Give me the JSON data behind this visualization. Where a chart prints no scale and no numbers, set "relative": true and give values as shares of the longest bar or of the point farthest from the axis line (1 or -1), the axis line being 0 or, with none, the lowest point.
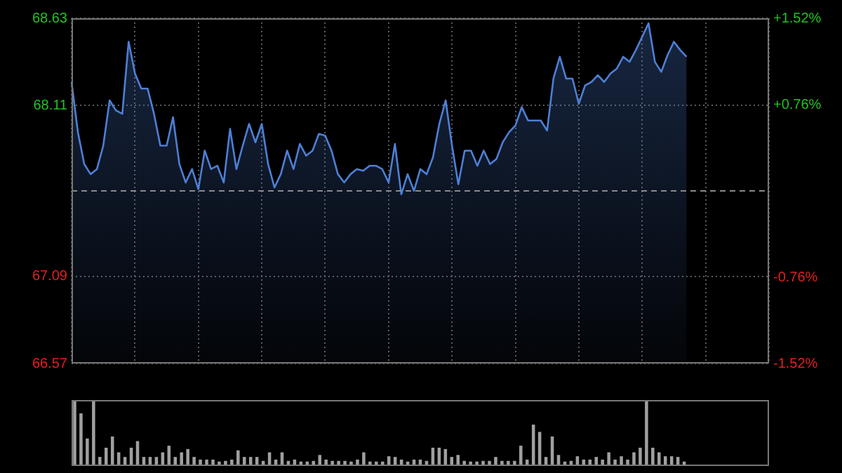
{
  "chart_data": [
    {
      "type": "area",
      "categories": [
        null,
        null,
        null,
        null,
        null,
        null,
        null,
        null,
        null,
        null,
        null,
        null,
        null,
        null,
        null,
        null,
        null,
        null,
        null,
        null,
        null,
        null,
        null,
        null,
        null,
        null,
        null,
        null,
        null,
        null,
        null,
        null,
        null,
        null,
        null,
        null,
        null,
        null,
        null,
        null,
        null,
        null,
        null,
        null,
        null,
        null,
        null,
        null,
        null,
        null,
        null,
        null,
        null,
        null,
        null,
        null,
        null,
        null,
        null,
        null,
        null,
        null,
        null,
        null,
        null,
        null,
        null,
        null,
        null,
        null,
        null,
        null,
        null,
        null,
        null,
        null,
        null,
        null,
        null,
        null,
        null,
        null,
        null,
        null,
        null,
        null,
        null,
        null,
        null,
        null,
        null,
        null,
        null,
        null,
        null,
        null,
        null,
        null,
        null,
        null,
        null,
        null,
        null,
        null,
        null,
        null,
        null,
        null,
        null,
        null,
        null
      ],
      "series": [
        {
          "color": "#4d7fd6",
          "values": [
            68.25,
            67.95,
            67.76,
            67.7,
            67.73,
            67.87,
            68.14,
            68.08,
            68.06,
            68.49,
            68.3,
            68.21,
            68.21,
            68.06,
            67.87,
            67.87,
            68.04,
            67.76,
            67.65,
            67.73,
            67.61,
            67.84,
            67.73,
            67.75,
            67.65,
            67.97,
            67.73,
            67.87,
            68.0,
            67.89,
            68.0,
            67.76,
            67.62,
            67.7,
            67.84,
            67.73,
            67.88,
            67.81,
            67.84,
            67.94,
            67.93,
            67.84,
            67.7,
            67.65,
            67.7,
            67.73,
            67.72,
            67.75,
            67.75,
            67.73,
            67.65,
            67.88,
            67.58,
            67.7,
            67.6,
            67.73,
            67.7,
            67.8,
            68.0,
            68.14,
            67.87,
            67.64,
            67.84,
            67.84,
            67.75,
            67.84,
            67.76,
            67.79,
            67.89,
            67.95,
            67.99,
            68.1,
            68.02,
            68.02,
            68.02,
            67.96,
            68.27,
            68.4,
            68.27,
            68.27,
            68.12,
            68.23,
            68.25,
            68.29,
            68.25,
            68.3,
            68.33,
            68.4,
            68.37,
            68.44,
            68.52,
            68.6,
            68.37,
            68.31,
            68.41,
            68.49,
            68.44,
            68.4,
            null,
            null,
            null,
            null,
            null,
            null,
            null,
            null,
            null,
            null,
            null,
            null,
            null
          ]
        }
      ],
      "ylim": [
        66.57,
        68.63
      ],
      "yticks": [
        66.57,
        67.09,
        68.11,
        68.63
      ],
      "y2lim": [
        -1.52,
        1.52
      ],
      "y2ticks": [
        {
          "value": -1.52,
          "label": "-1.52%"
        },
        {
          "value": -0.76,
          "label": "-0.76%"
        },
        {
          "value": 0.76,
          "label": "+0.76%"
        },
        {
          "value": 1.52,
          "label": "+1.52%"
        }
      ],
      "ref_lines": [
        {
          "axis": "y",
          "value": 67.6,
          "color": "#8a8a8a",
          "line_style": "dashed"
        }
      ],
      "grid": true,
      "tick_labels": "y"
    },
    {
      "type": "bar",
      "relative": true,
      "tick_labels": false,
      "color": "#a0a0a0",
      "categories": [
        null,
        null,
        null,
        null,
        null,
        null,
        null,
        null,
        null,
        null,
        null,
        null,
        null,
        null,
        null,
        null,
        null,
        null,
        null,
        null,
        null,
        null,
        null,
        null,
        null,
        null,
        null,
        null,
        null,
        null,
        null,
        null,
        null,
        null,
        null,
        null,
        null,
        null,
        null,
        null,
        null,
        null,
        null,
        null,
        null,
        null,
        null,
        null,
        null,
        null,
        null,
        null,
        null,
        null,
        null,
        null,
        null,
        null,
        null,
        null,
        null,
        null,
        null,
        null,
        null,
        null,
        null,
        null,
        null,
        null,
        null,
        null,
        null,
        null,
        null,
        null,
        null,
        null,
        null,
        null,
        null,
        null,
        null,
        null,
        null,
        null,
        null,
        null,
        null,
        null,
        null,
        null,
        null,
        null,
        null,
        null,
        null,
        null,
        null,
        null,
        null,
        null,
        null,
        null,
        null,
        null,
        null,
        null,
        null,
        null,
        null
      ],
      "values": [
        1.0,
        0.79,
        0.41,
        1.0,
        0.13,
        0.27,
        0.44,
        0.2,
        0.13,
        0.27,
        0.37,
        0.13,
        0.13,
        0.13,
        0.2,
        0.3,
        0.13,
        0.2,
        0.25,
        0.13,
        0.09,
        0.09,
        0.09,
        0.06,
        0.07,
        0.09,
        0.23,
        0.13,
        0.13,
        0.13,
        0.07,
        0.2,
        0.09,
        0.2,
        0.07,
        0.09,
        0.06,
        0.06,
        0.07,
        0.16,
        0.09,
        0.07,
        0.07,
        0.07,
        0.06,
        0.09,
        0.2,
        0.06,
        0.06,
        0.06,
        0.14,
        0.13,
        0.09,
        0.06,
        0.09,
        0.09,
        0.07,
        0.27,
        0.27,
        0.25,
        0.13,
        0.16,
        0.07,
        0.06,
        0.06,
        0.07,
        0.07,
        0.13,
        0.07,
        0.07,
        0.07,
        0.3,
        0.09,
        0.62,
        0.51,
        0.13,
        0.44,
        0.16,
        0.06,
        0.07,
        0.14,
        0.09,
        0.09,
        0.13,
        0.09,
        0.2,
        0.09,
        0.14,
        0.09,
        0.2,
        0.27,
        1.0,
        0.27,
        0.2,
        0.14,
        0.14,
        0.13,
        0.06,
        null,
        null,
        null,
        null,
        null,
        null,
        null,
        null,
        null,
        null,
        null,
        null,
        null
      ]
    }
  ]
}
